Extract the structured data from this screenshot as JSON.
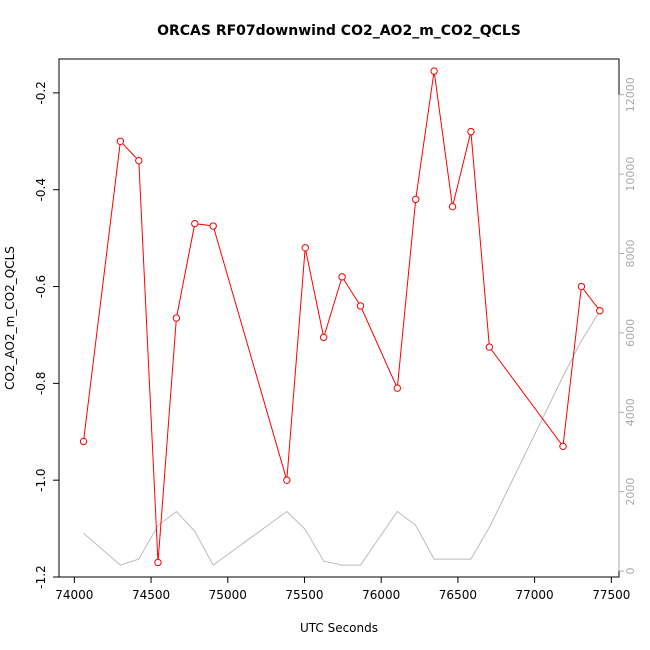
{
  "chart_data": {
    "type": "line",
    "title": "ORCAS RF07downwind CO2_AO2_m_CO2_QCLS",
    "xlabel": "UTC Seconds",
    "ylabel": "CO2_AO2_m_CO2_QCLS",
    "xlim": [
      73900,
      77550
    ],
    "ylim": [
      -1.2,
      -0.13
    ],
    "y2lim": [
      -150,
      12900
    ],
    "x_ticks": [
      74000,
      74500,
      75000,
      75500,
      76000,
      76500,
      77000,
      77500
    ],
    "x_tick_labels": [
      "74000",
      "74500",
      "75000",
      "75500",
      "76000",
      "76500",
      "77000",
      "77500"
    ],
    "y_ticks": [
      -1.2,
      -1.0,
      -0.8,
      -0.6,
      -0.4,
      -0.2
    ],
    "y_tick_labels": [
      "-1.2",
      "-1.0",
      "-0.8",
      "-0.6",
      "-0.4",
      "-0.2"
    ],
    "y2_ticks": [
      0,
      2000,
      4000,
      6000,
      8000,
      10000,
      12000
    ],
    "y2_tick_labels": [
      "0",
      "2000",
      "4000",
      "6000",
      "8000",
      "10000",
      "12000"
    ],
    "grid": false,
    "legend": "none",
    "series": [
      {
        "axis": "left",
        "color": "#ff0000",
        "marker": "open-circle",
        "x": [
          74060,
          74300,
          74420,
          74545,
          74665,
          74785,
          74905,
          75385,
          75505,
          75625,
          75745,
          75865,
          76105,
          76225,
          76345,
          76465,
          76585,
          76705,
          77185,
          77305,
          77425
        ],
        "y": [
          -0.92,
          -0.3,
          -0.34,
          -1.17,
          -0.665,
          -0.47,
          -0.475,
          -1.0,
          -0.52,
          -0.705,
          -0.58,
          -0.64,
          -0.81,
          -0.42,
          -0.155,
          -0.435,
          -0.28,
          -0.725,
          -0.93,
          -0.6,
          -0.65
        ]
      },
      {
        "axis": "right",
        "color": "#bbbbbb",
        "marker": "none",
        "x": [
          74060,
          74300,
          74420,
          74545,
          74665,
          74785,
          74905,
          75385,
          75505,
          75625,
          75745,
          75865,
          76105,
          76225,
          76345,
          76465,
          76585,
          76705,
          77185,
          77305,
          77425
        ],
        "y": [
          950,
          150,
          300,
          1150,
          1500,
          1000,
          150,
          1500,
          1050,
          250,
          150,
          150,
          1500,
          1150,
          300,
          300,
          300,
          1100,
          4900,
          5800,
          6550
        ]
      }
    ]
  }
}
